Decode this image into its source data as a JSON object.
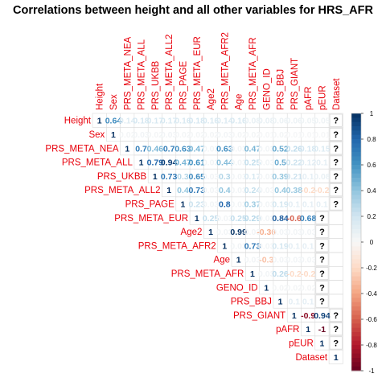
{
  "chart_data": {
    "type": "heatmap",
    "title": "Correlations between height and all other variables for HRS_AFR",
    "variables": [
      "Height",
      "Sex",
      "PRS_META_NEA",
      "PRS_META_ALL",
      "PRS_UKBB",
      "PRS_META_ALL2",
      "PRS_PAGE",
      "PRS_META_EUR",
      "Age2",
      "PRS_META_AFR2",
      "Age",
      "PRS_META_AFR",
      "GENO_ID",
      "PRS_BBJ",
      "PRS_GIANT",
      "pAFR",
      "pEUR",
      "Dataset"
    ],
    "missing_label": "?",
    "matrix_shape": "upper-triangular",
    "rows": [
      [
        1,
        0.64,
        0.14,
        0.18,
        0.17,
        0.17,
        0.16,
        0.18,
        0.16,
        0.14,
        0.16,
        0.08,
        0.08,
        0.06,
        0.06,
        0.05,
        0.05,
        null
      ],
      [
        1,
        0.02,
        0.03,
        0.02,
        0.03,
        0.02,
        0.02,
        0.02,
        0.03,
        0.02,
        0.02,
        0.01,
        0.02,
        0.01,
        0.01,
        0.01,
        null
      ],
      [
        1,
        0.7,
        0.46,
        0.7,
        0.63,
        0.47,
        0.03,
        0.63,
        0.03,
        0.47,
        0.03,
        0.52,
        0.26,
        0.18,
        0.15,
        null
      ],
      [
        1,
        0.79,
        0.94,
        0.47,
        0.61,
        0.03,
        0.44,
        0.03,
        0.25,
        0.03,
        0.5,
        0.22,
        0.12,
        0.1,
        null
      ],
      [
        1,
        0.73,
        0.3,
        0.65,
        0.03,
        0.3,
        0.03,
        0.17,
        0.03,
        0.39,
        0.21,
        0.1,
        0.08,
        null
      ],
      [
        1,
        0.4,
        0.73,
        0.03,
        0.4,
        0.03,
        0.24,
        0.03,
        0.4,
        0.38,
        -0.2,
        -0.2,
        null
      ],
      [
        1,
        0.23,
        0.03,
        0.8,
        0.03,
        0.37,
        0.03,
        0.19,
        0.1,
        0.1,
        0.1,
        null
      ],
      [
        1,
        0.25,
        0.03,
        0.25,
        0.29,
        0.03,
        0.84,
        -0.6,
        0.68,
        null
      ],
      [
        1,
        0.03,
        0.99,
        0.03,
        -0.36,
        0.03,
        0.03,
        0.03,
        null
      ],
      [
        1,
        0.03,
        0.73,
        0.03,
        0.19,
        0.1,
        0.1,
        null
      ],
      [
        1,
        0.03,
        -0.3,
        0.03,
        0.03,
        0.03,
        null
      ],
      [
        1,
        0.03,
        0.26,
        -0.2,
        -0.2,
        null
      ],
      [
        1,
        0.02,
        0.02,
        0.02,
        null
      ],
      [
        1,
        0.1,
        0.1,
        null
      ],
      [
        1,
        -0.9,
        0.94,
        null
      ],
      [
        1,
        -1,
        null
      ],
      [
        1,
        null
      ],
      [
        1
      ]
    ],
    "colorbar": {
      "range": [
        -1,
        1
      ],
      "ticks": [
        "1",
        "0.8",
        "0.6",
        "0.4",
        "0.2",
        "0",
        "-0.2",
        "-0.4",
        "-0.6",
        "-0.8",
        "-1"
      ],
      "color_negative": "#67001f",
      "color_zero": "#f7f7f7",
      "color_positive": "#053061"
    },
    "label_color": "#e8000b"
  }
}
